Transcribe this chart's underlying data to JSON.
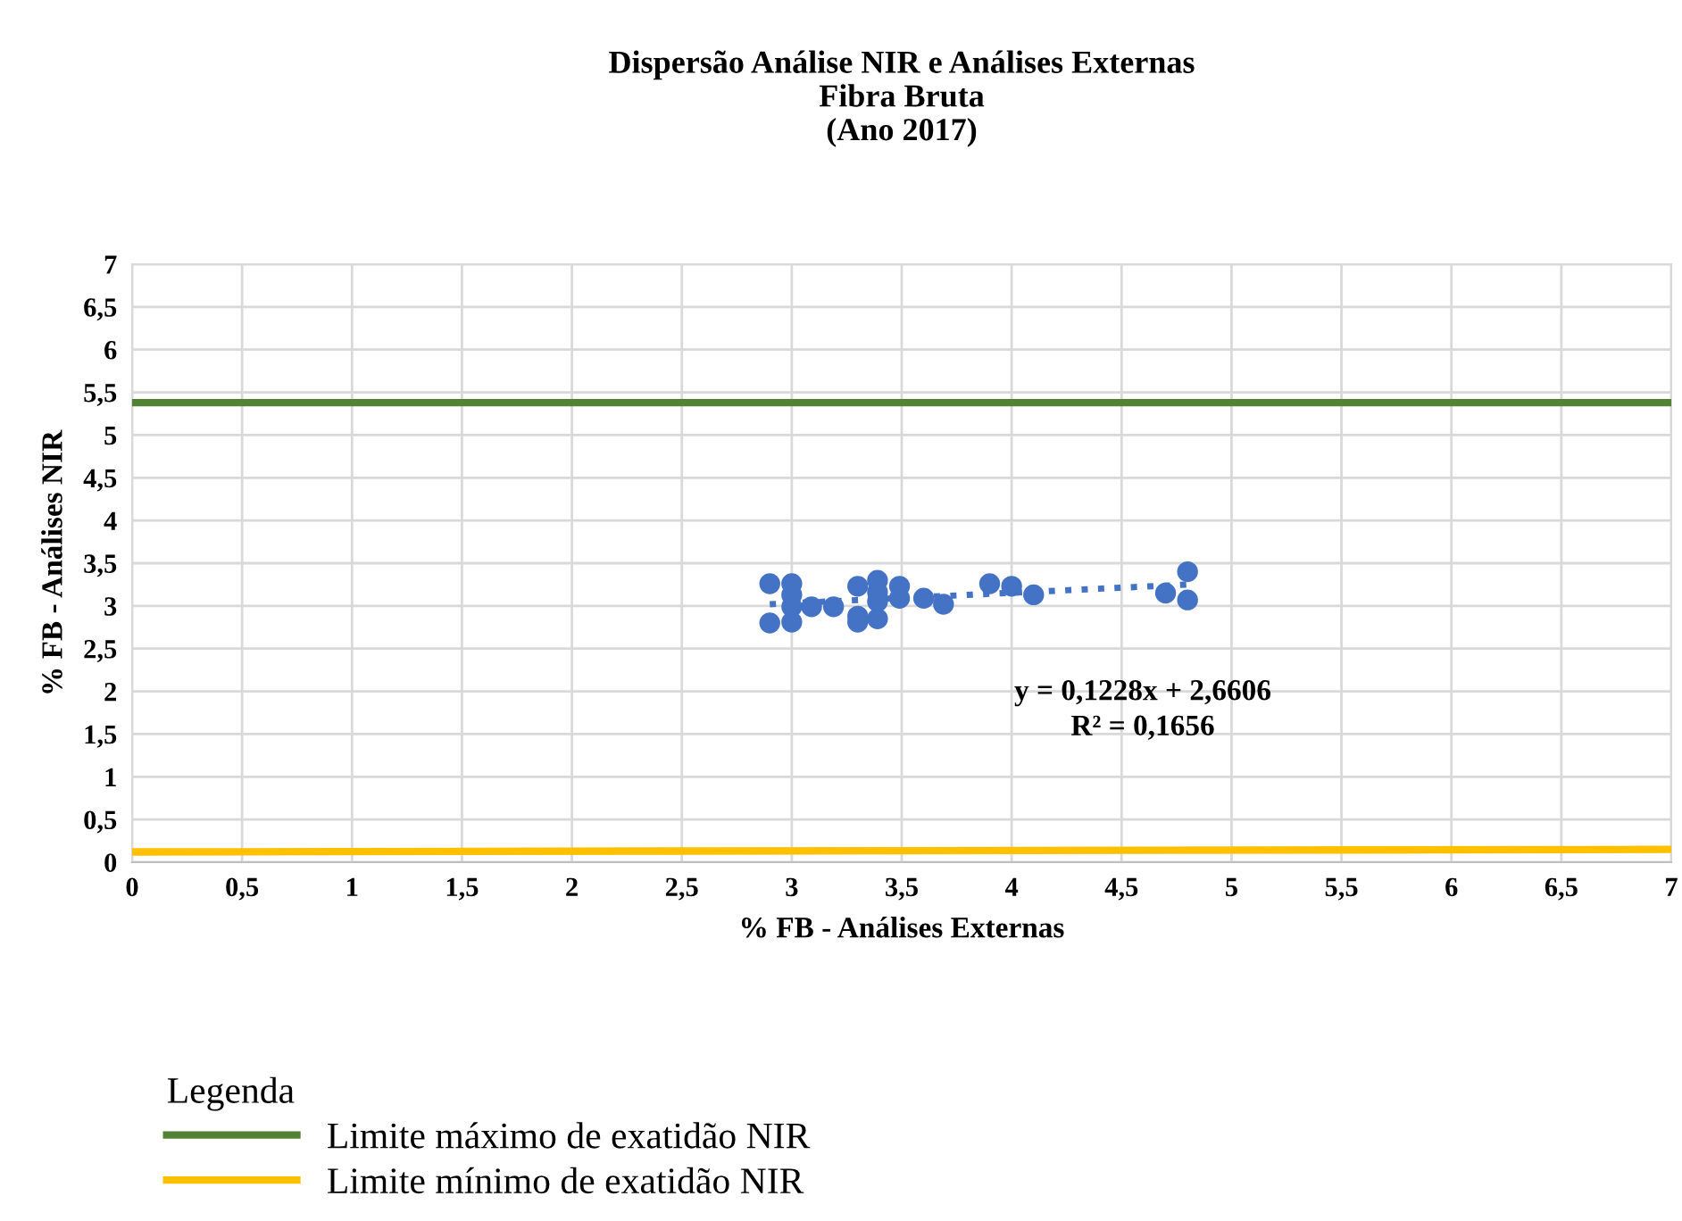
{
  "chart_data": {
    "type": "scatter",
    "title": "Dispersão Análise NIR e Análises Externas\nFibra Bruta\n(Ano 2017)",
    "xlabel": "% FB - Análises Externas",
    "ylabel": "% FB - Análises NIR",
    "legend_title": "Legenda",
    "legend": "bottom",
    "grid": true,
    "marker": "circle",
    "xlim": [
      0,
      7
    ],
    "ylim": [
      0,
      7
    ],
    "xticks": [
      0,
      {
        "value": 0.5,
        "label": "0,5"
      },
      1,
      {
        "value": 1.5,
        "label": "1,5"
      },
      2,
      {
        "value": 2.5,
        "label": "2,5"
      },
      3,
      {
        "value": 3.5,
        "label": "3,5"
      },
      4,
      {
        "value": 4.5,
        "label": "4,5"
      },
      5,
      {
        "value": 5.5,
        "label": "5,5"
      },
      6,
      {
        "value": 6.5,
        "label": "6,5"
      },
      7
    ],
    "yticks": [
      0,
      {
        "value": 0.5,
        "label": "0,5"
      },
      1,
      {
        "value": 1.5,
        "label": "1,5"
      },
      2,
      {
        "value": 2.5,
        "label": "2,5"
      },
      3,
      {
        "value": 3.5,
        "label": "3,5"
      },
      4,
      {
        "value": 4.5,
        "label": "4,5"
      },
      5,
      {
        "value": 5.5,
        "label": "5,5"
      },
      6,
      {
        "value": 6.5,
        "label": "6,5"
      },
      7
    ],
    "series": [
      {
        "color": "#4472c4",
        "x": [
          2.9,
          2.9,
          3.0,
          3.0,
          3.0,
          3.0,
          3.09,
          3.19,
          3.3,
          3.3,
          3.3,
          3.39,
          3.39,
          3.39,
          3.39,
          3.49,
          3.49,
          3.6,
          3.69,
          3.9,
          4.0,
          4.1,
          4.7,
          4.8,
          4.8
        ],
        "values": [
          3.26,
          2.8,
          3.26,
          3.13,
          2.99,
          2.81,
          2.99,
          2.99,
          3.23,
          2.81,
          2.88,
          3.3,
          3.16,
          3.05,
          2.85,
          3.23,
          3.09,
          3.09,
          3.02,
          3.26,
          3.23,
          3.13,
          3.15,
          3.4,
          3.07
        ]
      },
      {
        "type": "line",
        "color": "#4472c4",
        "line_style": "dotted",
        "marker": "none",
        "x": [
          2.9,
          4.8
        ],
        "values": [
          3.02,
          3.25
        ]
      },
      {
        "type": "line",
        "name": "Limite máximo de exatidão NIR",
        "color": "#548235",
        "line_style": "solid",
        "marker": "none",
        "x": [
          0,
          7
        ],
        "values": [
          5.38,
          5.38
        ]
      },
      {
        "type": "line",
        "name": "Limite mínimo de exatidão NIR",
        "color": "#ffc000",
        "line_style": "solid",
        "marker": "none",
        "x": [
          0,
          7
        ],
        "values": [
          0.12,
          0.15
        ]
      }
    ],
    "annotations": [
      "y = 0,1228x + 2,6606\nR² = 0,1656"
    ]
  }
}
